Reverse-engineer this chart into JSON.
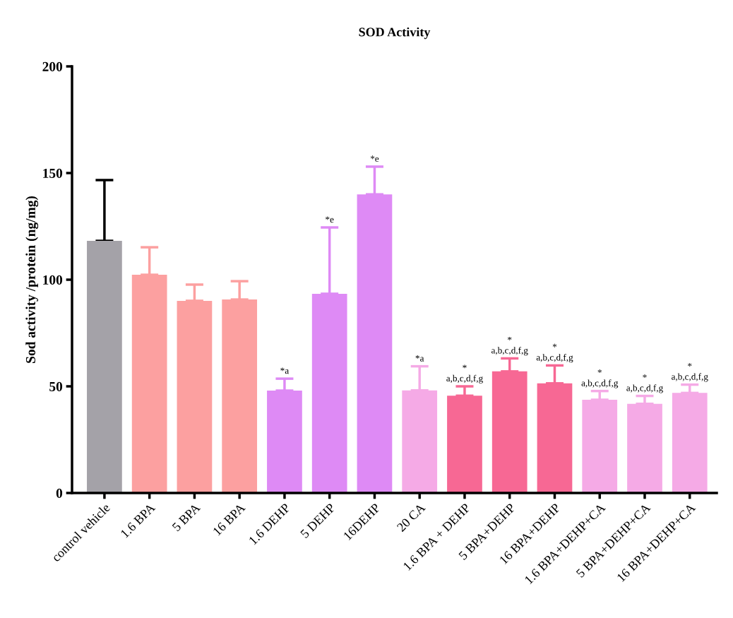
{
  "chart_data": {
    "type": "bar",
    "title": "SOD Activity",
    "ylabel": "Sod activity /protein (ng/mg)",
    "categories": [
      "control vehicle",
      "1.6 BPA",
      "5 BPA",
      "16 BPA",
      "1.6 DEHP",
      "5 DEHP",
      "16DEHP",
      "20 CA",
      "1.6 BPA + DEHP",
      "5 BPA+DEHP",
      "16 BPA+DEHP",
      "1.6 BPA+DEHP+CA",
      "5 BPA+DEHP+CA",
      "16 BPA+DEHP+CA"
    ],
    "values": [
      118.2,
      102.3,
      90.1,
      90.7,
      48,
      93.4,
      140,
      48.1,
      45.6,
      57,
      51.4,
      43.7,
      41.8,
      46.9
    ],
    "errors": [
      [
        118.2,
        146.7
      ],
      [
        102.3,
        115.2
      ],
      [
        90.1,
        97.7
      ],
      [
        90.7,
        99.3
      ],
      [
        48,
        53.6
      ],
      [
        93.4,
        124.5
      ],
      [
        140,
        153
      ],
      [
        48.1,
        59.4
      ],
      [
        45.6,
        50
      ],
      [
        57,
        63.1
      ],
      [
        51.4,
        59.8
      ],
      [
        43.7,
        47.8
      ],
      [
        41.8,
        45.5
      ],
      [
        46.9,
        50.8
      ]
    ],
    "colors": [
      "#a4a2a8",
      "#fca0a0",
      "#fca0a0",
      "#fca0a0",
      "#de8af5",
      "#de8af5",
      "#de8af5",
      "#f5aae6",
      "#f76894",
      "#f76894",
      "#f76894",
      "#f5aae6",
      "#f5aae6",
      "#f5aae6"
    ],
    "ylim": [
      0,
      200
    ],
    "yticks": [
      0,
      50,
      100,
      150,
      200
    ],
    "grid": false,
    "legend": false,
    "annotations": [
      {
        "text": "*a",
        "x": "1.6 DEHP",
        "y": 53.6
      },
      {
        "text": "*e",
        "x": "5 DEHP",
        "y": 124.5
      },
      {
        "text": "*e",
        "x": "16DEHP",
        "y": 153
      },
      {
        "text": "*a",
        "x": "20 CA",
        "y": 59.4
      },
      {
        "text": "*\na,b,c,d,f,g",
        "x": "1.6 BPA + DEHP",
        "y": 50
      },
      {
        "text": "*\na,b,c,d,f,g",
        "x": "5 BPA+DEHP",
        "y": 63.1
      },
      {
        "text": "*\na,b,c,d,f,g",
        "x": "16 BPA+DEHP",
        "y": 59.8
      },
      {
        "text": "*\na,b,c,d,f,g",
        "x": "1.6 BPA+DEHP+CA",
        "y": 47.8
      },
      {
        "text": "*\na,b,c,d,f,g",
        "x": "5 BPA+DEHP+CA",
        "y": 45.5
      },
      {
        "text": "*\na,b,c,d,f,g",
        "x": "16 BPA+DEHP+CA",
        "y": 50.8
      }
    ]
  }
}
